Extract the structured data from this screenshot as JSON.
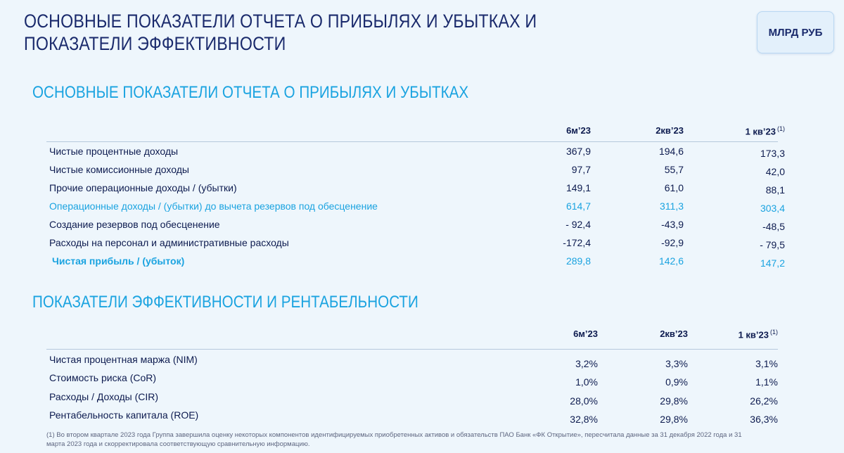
{
  "page": {
    "title": "ОСНОВНЫЕ ПОКАЗАТЕЛИ ОТЧЕТА О ПРИБЫЛЯХ И УБЫТКАХ И ПОКАЗАТЕЛИ ЭФФЕКТИВНОСТИ",
    "unit_badge": "МЛРД РУБ"
  },
  "pl_section": {
    "title": "ОСНОВНЫЕ ПОКАЗАТЕЛИ ОТЧЕТА О ПРИБЫЛЯХ И УБЫТКАХ",
    "columns": [
      "6м’23",
      "2кв’23",
      "1 кв’23"
    ],
    "column_note": "(1)",
    "rows": [
      {
        "label": "Чистые процентные доходы",
        "values": [
          "367,9",
          "194,6",
          "173,3"
        ]
      },
      {
        "label": "Чистые комиссионные доходы",
        "values": [
          "97,7",
          "55,7",
          "42,0"
        ]
      },
      {
        "label": "Прочие операционные доходы / (убытки)",
        "values": [
          "149,1",
          "61,0",
          "88,1"
        ]
      },
      {
        "label": "Операционные доходы / (убытки) до вычета резервов под обесценение",
        "values": [
          "614,7",
          "311,3",
          "303,4"
        ]
      },
      {
        "label": "Создание резервов под обесценение",
        "values": [
          "- 92,4",
          "-43,9",
          "-48,5"
        ]
      },
      {
        "label": "Расходы на персонал и административные расходы",
        "values": [
          "-172,4",
          "-92,9",
          "- 79,5"
        ]
      },
      {
        "label": "Чистая прибыль / (убыток)",
        "values": [
          "289,8",
          "142,6",
          "147,2"
        ]
      }
    ]
  },
  "kpi_section": {
    "title": "ПОКАЗАТЕЛИ ЭФФЕКТИВНОСТИ И РЕНТАБЕЛЬНОСТИ",
    "columns": [
      "6м’23",
      "2кв’23",
      "1 кв’23"
    ],
    "column_note": "(1)",
    "rows": [
      {
        "label": "Чистая процентная маржа (NIM)",
        "values": [
          "3,2%",
          "3,3%",
          "3,1%"
        ]
      },
      {
        "label": "Стоимость риска (CoR)",
        "values": [
          "1,0%",
          "0,9%",
          "1,1%"
        ]
      },
      {
        "label": "Расходы / Доходы (CIR)",
        "values": [
          "28,0%",
          "29,8%",
          "26,2%"
        ]
      },
      {
        "label": "Рентабельность капитала (ROE)",
        "values": [
          "32,8%",
          "29,8%",
          "36,3%"
        ]
      }
    ]
  },
  "footnote": "(1) Во втором квартале 2023 года Группа завершила оценку некоторых компонентов идентифицируемых приобретенных активов и обязательств ПАО Банк «ФК Открытие», пересчитала данные за 31 декабря 2022 года и 31 марта 2023 года и скорректировала соответствующую сравнительную информацию."
}
